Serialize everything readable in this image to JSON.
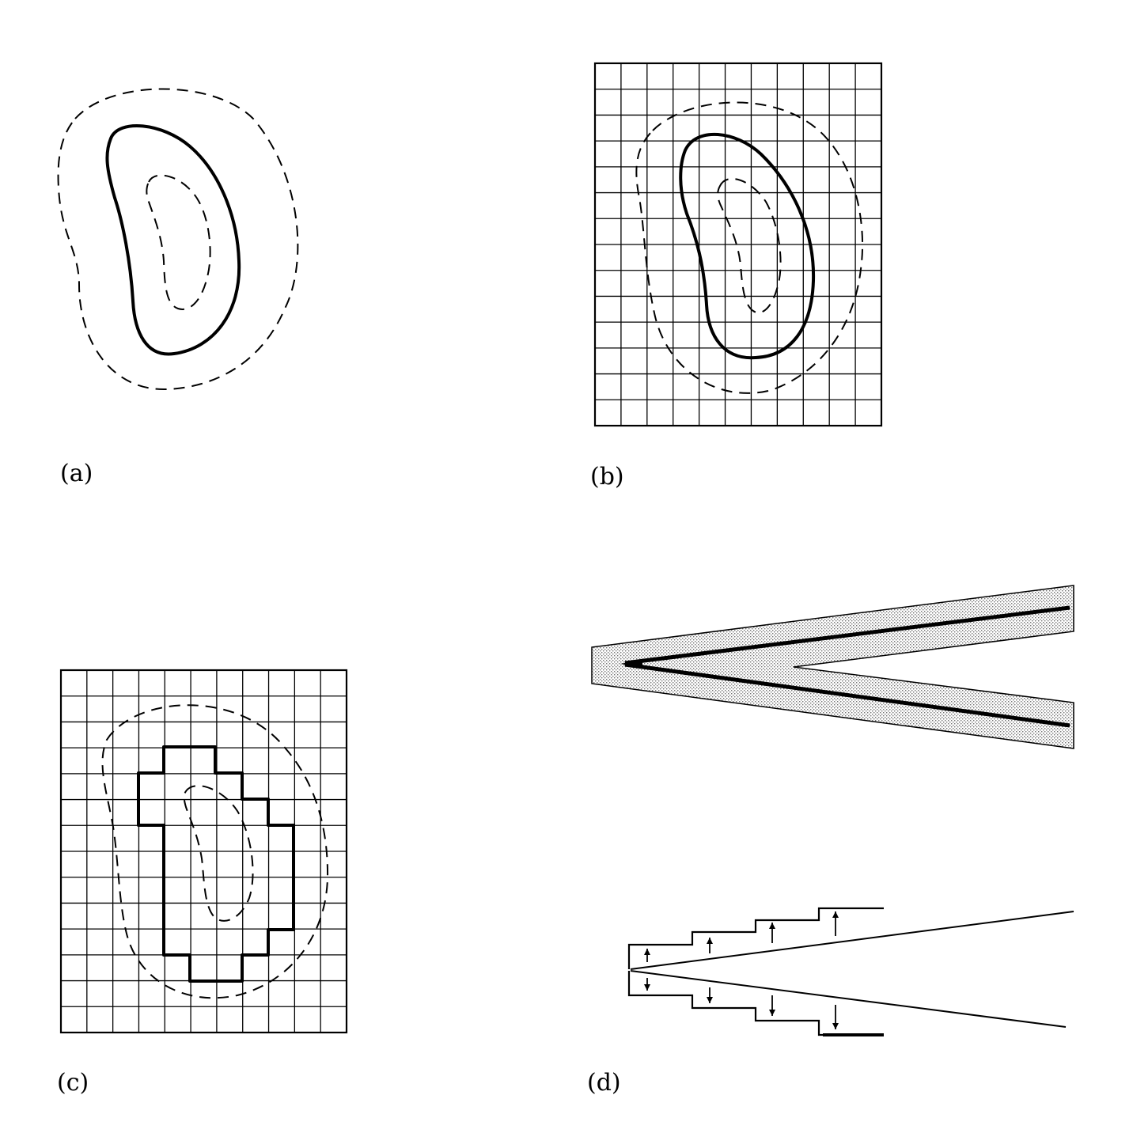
{
  "panels": [
    {
      "id": "a",
      "label": "(a)"
    },
    {
      "id": "b",
      "label": "(b)"
    },
    {
      "id": "c",
      "label": "(c)"
    },
    {
      "id": "d",
      "label": "(d)"
    }
  ],
  "colors": {
    "ink": "#000000",
    "paper": "#ffffff",
    "band_fill": "#dcdcdc"
  }
}
